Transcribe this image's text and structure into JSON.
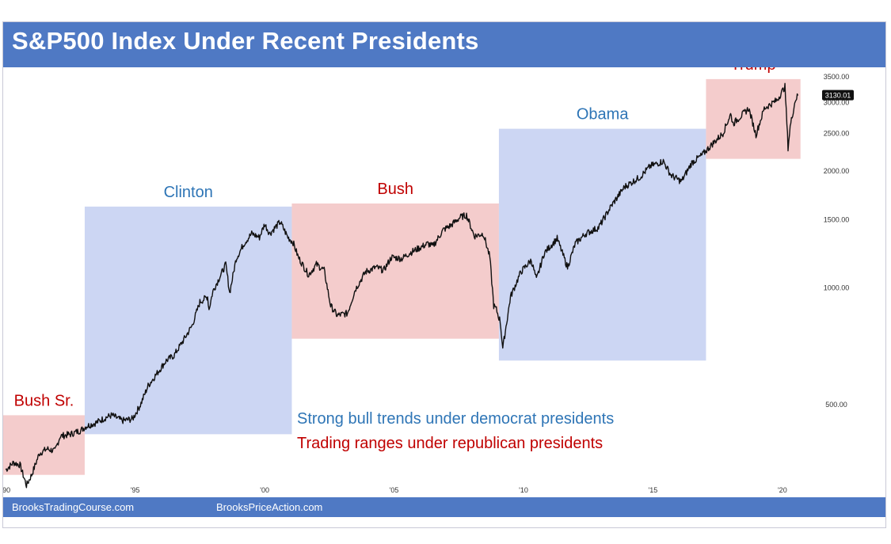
{
  "chart_data": {
    "type": "line",
    "title": "S&P500 Index Under Recent Presidents",
    "y_scale": "log",
    "ylim": [
      300,
      3700
    ],
    "xlim": [
      1989.9,
      2020.8
    ],
    "y_ticks": [
      {
        "value": 3500,
        "label": "3500.00"
      },
      {
        "value": 3000,
        "label": "3000.00"
      },
      {
        "value": 2500,
        "label": "2500.00"
      },
      {
        "value": 2000,
        "label": "2000.00"
      },
      {
        "value": 1500,
        "label": "1500.00"
      },
      {
        "value": 1000,
        "label": "1000.00"
      },
      {
        "value": 500,
        "label": "500.00"
      }
    ],
    "last_value_label": "3130.01",
    "x_ticks": [
      {
        "value": 1990,
        "label": "'90"
      },
      {
        "value": 1995,
        "label": "'95"
      },
      {
        "value": 2000,
        "label": "'00"
      },
      {
        "value": 2005,
        "label": "'05"
      },
      {
        "value": 2010,
        "label": "'10"
      },
      {
        "value": 2015,
        "label": "'15"
      },
      {
        "value": 2020,
        "label": "'20"
      }
    ],
    "presidents": [
      {
        "name": "Bush Sr.",
        "party": "republican",
        "start": 1989.9,
        "end": 1993.05,
        "low": 330,
        "high": 470
      },
      {
        "name": "Clinton",
        "party": "democrat",
        "start": 1993.05,
        "end": 2001.05,
        "low": 420,
        "high": 1620
      },
      {
        "name": "Bush",
        "party": "republican",
        "start": 2001.05,
        "end": 2009.05,
        "low": 740,
        "high": 1650
      },
      {
        "name": "Obama",
        "party": "democrat",
        "start": 2009.05,
        "end": 2017.05,
        "low": 650,
        "high": 2570
      },
      {
        "name": "Trump",
        "party": "republican",
        "start": 2017.05,
        "end": 2020.7,
        "low": 2150,
        "high": 3450
      }
    ],
    "series": [
      {
        "x": [
          1990.0,
          1990.3,
          1990.55,
          1990.8,
          1991.0,
          1991.3,
          1991.6,
          1991.9,
          1992.1,
          1992.5,
          1992.9,
          1993.1,
          1993.5,
          1993.9,
          1994.1,
          1994.5,
          1994.9,
          1995.2,
          1995.5,
          1995.9,
          1996.2,
          1996.5,
          1996.9,
          1997.2,
          1997.5,
          1997.8,
          1997.85,
          1998.0,
          1998.5,
          1998.65,
          1998.9,
          1999.2,
          1999.5,
          1999.8,
          2000.0,
          2000.2,
          2000.6,
          2000.9,
          2001.1,
          2001.3,
          2001.7,
          2002.0,
          2002.3,
          2002.55,
          2002.8,
          2003.2,
          2003.5,
          2003.9,
          2004.3,
          2004.6,
          2004.9,
          2005.3,
          2005.6,
          2005.9,
          2006.3,
          2006.5,
          2006.9,
          2007.2,
          2007.55,
          2007.8,
          2008.1,
          2008.45,
          2008.7,
          2008.85,
          2008.95,
          2009.1,
          2009.2,
          2009.5,
          2009.9,
          2010.3,
          2010.5,
          2010.8,
          2011.3,
          2011.7,
          2012.0,
          2012.4,
          2012.9,
          2013.4,
          2013.9,
          2014.5,
          2014.9,
          2015.4,
          2015.7,
          2016.1,
          2016.5,
          2016.9,
          2017.3,
          2017.7,
          2018.0,
          2018.1,
          2018.7,
          2018.98,
          2019.3,
          2019.8,
          2020.1,
          2020.22,
          2020.3,
          2020.5,
          2020.6
        ],
        "y": [
          340,
          355,
          350,
          310,
          330,
          375,
          385,
          380,
          415,
          420,
          430,
          440,
          450,
          465,
          470,
          455,
          460,
          500,
          560,
          610,
          650,
          670,
          740,
          800,
          920,
          950,
          880,
          980,
          1150,
          970,
          1190,
          1300,
          1380,
          1350,
          1460,
          1380,
          1480,
          1350,
          1310,
          1200,
          1080,
          1150,
          1110,
          900,
          850,
          860,
          990,
          1100,
          1130,
          1110,
          1200,
          1190,
          1230,
          1260,
          1300,
          1280,
          1410,
          1450,
          1520,
          1540,
          1360,
          1380,
          1200,
          900,
          880,
          820,
          700,
          950,
          1100,
          1180,
          1050,
          1230,
          1340,
          1130,
          1300,
          1380,
          1430,
          1630,
          1820,
          1930,
          2060,
          2120,
          1950,
          1880,
          2100,
          2200,
          2350,
          2500,
          2800,
          2650,
          2900,
          2480,
          2900,
          3050,
          3300,
          2300,
          2600,
          3050,
          3130
        ]
      }
    ],
    "annotations": [
      {
        "text": "Strong bull trends under democrat presidents",
        "color": "#2e75b6"
      },
      {
        "text": "Trading ranges under republican presidents",
        "color": "#c00000"
      }
    ],
    "colors": {
      "democrat_fill": "#ccd6f3",
      "republican_fill": "#f4cccc",
      "democrat_label": "#2e75b6",
      "republican_label": "#c00000",
      "line": "#111111",
      "title_bar": "#4f79c4"
    }
  },
  "footer": {
    "left_link": "BrooksTradingCourse.com",
    "right_link": "BrooksPriceAction.com"
  }
}
